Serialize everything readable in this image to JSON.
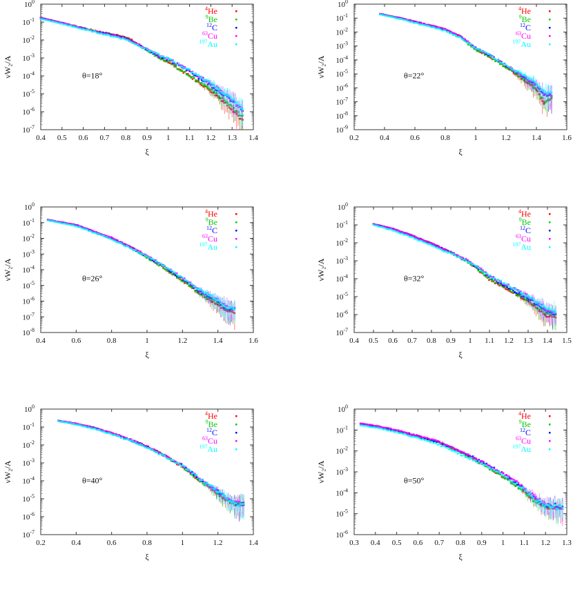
{
  "figure": {
    "ylabel": "νW₂/A",
    "xlabel": "ξ"
  },
  "legend": [
    {
      "mass": "4",
      "element": "He",
      "color": "#ff0000"
    },
    {
      "mass": "9",
      "element": "Be",
      "color": "#00cc00"
    },
    {
      "mass": "12",
      "element": "C",
      "color": "#0000ff"
    },
    {
      "mass": "63",
      "element": "Cu",
      "color": "#ff00ff"
    },
    {
      "mass": "197",
      "element": "Au",
      "color": "#00ffff"
    }
  ],
  "chart_data": [
    {
      "type": "scatter",
      "title": "θ=18°",
      "annotation": "θ=18°",
      "xlabel": "ξ",
      "ylabel": "νW₂/A",
      "yscale": "log",
      "xlim": [
        0.4,
        1.4
      ],
      "ylim": [
        1e-07,
        1
      ],
      "xticks": [
        "0.4",
        "0.5",
        "0.6",
        "0.7",
        "0.8",
        "0.9",
        "1",
        "1.1",
        "1.2",
        "1.3",
        "1.4"
      ],
      "yticks": [
        "10^0",
        "10^-1",
        "10^-2",
        "10^-3",
        "10^-4",
        "10^-5",
        "10^-6",
        "10^-7"
      ],
      "legend_position": "top-right",
      "grid": false,
      "x": [
        0.4,
        0.5,
        0.6,
        0.7,
        0.8,
        0.9,
        0.97,
        1.0,
        1.1,
        1.2,
        1.3,
        1.35
      ],
      "series": [
        {
          "name": "4He",
          "values": [
            0.17,
            0.09,
            0.045,
            0.025,
            0.015,
            0.003,
            0.0009,
            0.0006,
            0.0001,
            1.5e-05,
            1.5e-06,
            3e-07
          ]
        },
        {
          "name": "9Be",
          "values": [
            0.17,
            0.09,
            0.045,
            0.024,
            0.013,
            0.0028,
            0.0008,
            0.0006,
            0.0001,
            1.8e-05,
            2e-06,
            5e-07
          ]
        },
        {
          "name": "12C",
          "values": [
            0.17,
            0.09,
            0.045,
            0.024,
            0.013,
            0.003,
            0.001,
            0.0008,
            0.00018,
            3e-05,
            4e-06,
            1.2e-06
          ]
        },
        {
          "name": "63Cu",
          "values": [
            0.17,
            0.09,
            0.045,
            0.023,
            0.012,
            0.003,
            0.0011,
            0.0009,
            0.0002,
            4e-05,
            5e-06,
            1.2e-06
          ]
        },
        {
          "name": "197Au",
          "values": [
            0.15,
            0.08,
            0.04,
            0.021,
            0.011,
            0.003,
            0.0012,
            0.0009,
            0.0002,
            4e-05,
            5e-06,
            1.5e-06
          ]
        }
      ]
    },
    {
      "type": "scatter",
      "title": "θ=22°",
      "annotation": "θ=22°",
      "xlabel": "ξ",
      "ylabel": "νW₂/A",
      "yscale": "log",
      "xlim": [
        0.2,
        1.6
      ],
      "ylim": [
        1e-09,
        1
      ],
      "xticks": [
        "0.2",
        "0.4",
        "0.6",
        "0.8",
        "1",
        "1.2",
        "1.4",
        "1.6"
      ],
      "yticks": [
        "10^0",
        "10^-1",
        "10^-2",
        "10^-3",
        "10^-4",
        "10^-5",
        "10^-6",
        "10^-7",
        "10^-8",
        "10^-9"
      ],
      "legend_position": "top-right",
      "grid": false,
      "x": [
        0.37,
        0.5,
        0.6,
        0.7,
        0.8,
        0.9,
        1.0,
        1.05,
        1.1,
        1.2,
        1.3,
        1.4,
        1.45,
        1.5
      ],
      "series": [
        {
          "name": "4He",
          "values": [
            0.2,
            0.1,
            0.055,
            0.03,
            0.015,
            0.005,
            0.0006,
            0.0003,
            0.00015,
            3e-05,
            5e-06,
            8e-07,
            8e-08,
            2e-07
          ]
        },
        {
          "name": "9Be",
          "values": [
            0.2,
            0.1,
            0.055,
            0.03,
            0.014,
            0.004,
            0.0005,
            0.0003,
            0.00015,
            3e-05,
            6e-06,
            1e-06,
            1e-07,
            2e-07
          ]
        },
        {
          "name": "12C",
          "values": [
            0.2,
            0.1,
            0.055,
            0.03,
            0.015,
            0.005,
            0.0007,
            0.0004,
            0.0002,
            4e-05,
            8e-06,
            1.5e-06,
            3e-07,
            3e-07
          ]
        },
        {
          "name": "63Cu",
          "values": [
            0.2,
            0.1,
            0.055,
            0.03,
            0.016,
            0.005,
            0.0007,
            0.0004,
            0.0002,
            4e-05,
            9e-06,
            1.5e-06,
            4e-07,
            3e-07
          ]
        },
        {
          "name": "197Au",
          "values": [
            0.18,
            0.09,
            0.045,
            0.025,
            0.012,
            0.004,
            0.0007,
            0.0004,
            0.0002,
            4e-05,
            1e-05,
            2e-06,
            5e-07,
            4e-07
          ]
        }
      ]
    },
    {
      "type": "scatter",
      "title": "θ=26°",
      "annotation": "θ=26°",
      "xlabel": "ξ",
      "ylabel": "νW₂/A",
      "yscale": "log",
      "xlim": [
        0.4,
        1.6
      ],
      "ylim": [
        1e-08,
        1
      ],
      "xticks": [
        "0.4",
        "0.6",
        "0.8",
        "1",
        "1.2",
        "1.4",
        "1.6"
      ],
      "yticks": [
        "10^0",
        "10^-1",
        "10^-2",
        "10^-3",
        "10^-4",
        "10^-5",
        "10^-6",
        "10^-7",
        "10^-8"
      ],
      "legend_position": "top-right",
      "grid": false,
      "x": [
        0.44,
        0.6,
        0.8,
        0.9,
        1.0,
        1.1,
        1.2,
        1.3,
        1.4,
        1.45,
        1.5
      ],
      "series": [
        {
          "name": "4He",
          "values": [
            0.15,
            0.07,
            0.01,
            0.003,
            0.0007,
            0.00012,
            2e-05,
            3e-06,
            6e-07,
            2e-07,
            2e-07
          ]
        },
        {
          "name": "9Be",
          "values": [
            0.15,
            0.07,
            0.01,
            0.003,
            0.0006,
            0.00012,
            2e-05,
            3e-06,
            8e-07,
            3e-07,
            3e-07
          ]
        },
        {
          "name": "12C",
          "values": [
            0.15,
            0.07,
            0.01,
            0.003,
            0.0007,
            0.00015,
            2.5e-05,
            4e-06,
            1e-06,
            3e-07,
            3e-07
          ]
        },
        {
          "name": "63Cu",
          "values": [
            0.15,
            0.07,
            0.011,
            0.003,
            0.0008,
            0.00016,
            3e-05,
            5e-06,
            1.2e-06,
            4e-07,
            3e-07
          ]
        },
        {
          "name": "197Au",
          "values": [
            0.14,
            0.06,
            0.009,
            0.0025,
            0.0007,
            0.00016,
            3e-05,
            5e-06,
            1.2e-06,
            4e-07,
            3e-07
          ]
        }
      ]
    },
    {
      "type": "scatter",
      "title": "θ=32°",
      "annotation": "θ=32°",
      "xlabel": "ξ",
      "ylabel": "νW₂/A",
      "yscale": "log",
      "xlim": [
        0.4,
        1.5
      ],
      "ylim": [
        1e-07,
        1
      ],
      "xticks": [
        "0.4",
        "0.5",
        "0.6",
        "0.7",
        "0.8",
        "0.9",
        "1",
        "1.1",
        "1.2",
        "1.3",
        "1.4",
        "1.5"
      ],
      "yticks": [
        "10^0",
        "10^-1",
        "10^-2",
        "10^-3",
        "10^-4",
        "10^-5",
        "10^-6",
        "10^-7"
      ],
      "legend_position": "top-right",
      "grid": false,
      "x": [
        0.5,
        0.6,
        0.7,
        0.8,
        0.9,
        1.0,
        1.1,
        1.2,
        1.3,
        1.4,
        1.45
      ],
      "series": [
        {
          "name": "4He",
          "values": [
            0.11,
            0.06,
            0.025,
            0.009,
            0.003,
            0.0007,
            9e-05,
            2.5e-05,
            5e-06,
            8e-07,
            6e-07
          ]
        },
        {
          "name": "9Be",
          "values": [
            0.11,
            0.06,
            0.025,
            0.009,
            0.003,
            0.0007,
            0.0001,
            2.5e-05,
            6e-06,
            1e-06,
            8e-07
          ]
        },
        {
          "name": "12C",
          "values": [
            0.11,
            0.06,
            0.025,
            0.009,
            0.003,
            0.0008,
            0.00013,
            3e-05,
            8e-06,
            1.5e-06,
            1e-06
          ]
        },
        {
          "name": "63Cu",
          "values": [
            0.11,
            0.06,
            0.026,
            0.009,
            0.003,
            0.0009,
            0.00015,
            4e-05,
            1e-05,
            2e-06,
            1.2e-06
          ]
        },
        {
          "name": "197Au",
          "values": [
            0.1,
            0.05,
            0.02,
            0.007,
            0.0025,
            0.0008,
            0.00015,
            4e-05,
            1e-05,
            2e-06,
            1.2e-06
          ]
        }
      ]
    },
    {
      "type": "scatter",
      "title": "θ=40°",
      "annotation": "θ=40°",
      "xlabel": "ξ",
      "ylabel": "νW₂/A",
      "yscale": "log",
      "xlim": [
        0.2,
        1.4
      ],
      "ylim": [
        1e-07,
        1
      ],
      "xticks": [
        "0.2",
        "0.4",
        "0.6",
        "0.8",
        "1",
        "1.2",
        "1.4"
      ],
      "yticks": [
        "10^0",
        "10^-1",
        "10^-2",
        "10^-3",
        "10^-4",
        "10^-5",
        "10^-6",
        "10^-7"
      ],
      "legend_position": "top-right",
      "grid": false,
      "x": [
        0.3,
        0.4,
        0.5,
        0.6,
        0.7,
        0.8,
        0.9,
        1.0,
        1.1,
        1.2,
        1.25,
        1.3,
        1.35
      ],
      "series": [
        {
          "name": "4He",
          "values": [
            0.22,
            0.15,
            0.09,
            0.045,
            0.02,
            0.008,
            0.0025,
            0.0006,
            0.0001,
            2e-05,
            8e-06,
            5e-06,
            5e-06
          ]
        },
        {
          "name": "9Be",
          "values": [
            0.22,
            0.15,
            0.09,
            0.045,
            0.02,
            0.008,
            0.0025,
            0.0006,
            0.0001,
            2e-05,
            8e-06,
            5e-06,
            5e-06
          ]
        },
        {
          "name": "12C",
          "values": [
            0.22,
            0.15,
            0.09,
            0.045,
            0.02,
            0.008,
            0.0025,
            0.0007,
            0.00012,
            2.5e-05,
            1e-05,
            5e-06,
            5e-06
          ]
        },
        {
          "name": "63Cu",
          "values": [
            0.22,
            0.16,
            0.09,
            0.047,
            0.021,
            0.008,
            0.0026,
            0.0007,
            0.00013,
            2.5e-05,
            1e-05,
            6e-06,
            5e-06
          ]
        },
        {
          "name": "197Au",
          "values": [
            0.21,
            0.14,
            0.08,
            0.04,
            0.018,
            0.007,
            0.0023,
            0.0007,
            0.00013,
            2.5e-05,
            1e-05,
            5e-06,
            5e-06
          ]
        }
      ]
    },
    {
      "type": "scatter",
      "title": "θ=50°",
      "annotation": "θ=50°",
      "xlabel": "ξ",
      "ylabel": "νW₂/A",
      "yscale": "log",
      "xlim": [
        0.3,
        1.3
      ],
      "ylim": [
        1e-06,
        1
      ],
      "xticks": [
        "0.3",
        "0.4",
        "0.5",
        "0.6",
        "0.7",
        "0.8",
        "0.9",
        "1",
        "1.1",
        "1.2",
        "1.3"
      ],
      "yticks": [
        "10^0",
        "10^-1",
        "10^-2",
        "10^-3",
        "10^-4",
        "10^-5",
        "10^-6"
      ],
      "legend_position": "top-right",
      "grid": false,
      "x": [
        0.33,
        0.4,
        0.5,
        0.6,
        0.7,
        0.8,
        0.9,
        1.0,
        1.1,
        1.15,
        1.2,
        1.25,
        1.28
      ],
      "series": [
        {
          "name": "4He",
          "values": [
            0.2,
            0.15,
            0.09,
            0.05,
            0.025,
            0.009,
            0.0025,
            0.0006,
            0.00012,
            4e-05,
            2e-05,
            2e-05,
            2e-05
          ]
        },
        {
          "name": "9Be",
          "values": [
            0.2,
            0.15,
            0.09,
            0.05,
            0.025,
            0.009,
            0.0025,
            0.0006,
            0.00012,
            4e-05,
            2e-05,
            2e-05,
            2e-05
          ]
        },
        {
          "name": "12C",
          "values": [
            0.2,
            0.15,
            0.095,
            0.05,
            0.026,
            0.01,
            0.003,
            0.0008,
            0.00015,
            5e-05,
            2.5e-05,
            2.5e-05,
            2e-05
          ]
        },
        {
          "name": "63Cu",
          "values": [
            0.21,
            0.16,
            0.1,
            0.052,
            0.027,
            0.01,
            0.003,
            0.0008,
            0.00018,
            6e-05,
            3e-05,
            2e-05,
            2e-05
          ]
        },
        {
          "name": "197Au",
          "values": [
            0.17,
            0.13,
            0.08,
            0.04,
            0.02,
            0.007,
            0.0025,
            0.0007,
            0.00015,
            5e-05,
            2.5e-05,
            2e-05,
            2e-05
          ]
        }
      ]
    }
  ]
}
